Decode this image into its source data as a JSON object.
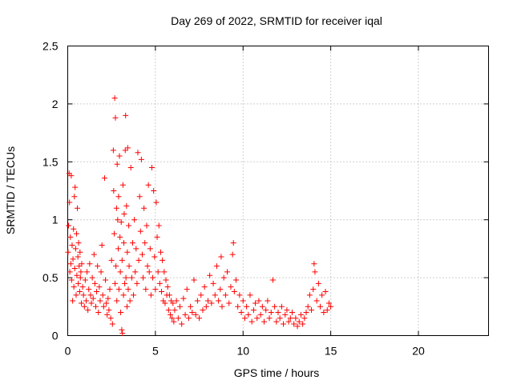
{
  "chart_data": {
    "type": "scatter",
    "title": "Day 269 of 2022, SRMTID for receiver iqal",
    "xlabel": "GPS time / hours",
    "ylabel": "SRMTID / TECUs",
    "xlim": [
      0,
      24
    ],
    "ylim": [
      0,
      2.5
    ],
    "xticks": [
      0,
      5,
      10,
      15,
      20
    ],
    "xtick_labels": [
      "0",
      "5",
      "10",
      "15",
      "20"
    ],
    "yticks": [
      0,
      0.5,
      1,
      1.5,
      2,
      2.5
    ],
    "ytick_labels": [
      "0",
      "0.5",
      "1",
      "1.5",
      "2",
      "2.5"
    ],
    "grid": true,
    "marker": "+",
    "color": "#ff0000",
    "series": [
      {
        "name": "SRMTID",
        "points": [
          [
            0.02,
            0.72
          ],
          [
            0.05,
            0.95
          ],
          [
            0.08,
            1.4
          ],
          [
            0.1,
            1.15
          ],
          [
            0.12,
            0.55
          ],
          [
            0.15,
            0.85
          ],
          [
            0.18,
            0.62
          ],
          [
            0.2,
            1.38
          ],
          [
            0.22,
            0.48
          ],
          [
            0.25,
            0.78
          ],
          [
            0.28,
            0.3
          ],
          [
            0.3,
            0.66
          ],
          [
            0.33,
            0.92
          ],
          [
            0.35,
            0.42
          ],
          [
            0.38,
            1.2
          ],
          [
            0.4,
            0.58
          ],
          [
            0.42,
            1.28
          ],
          [
            0.45,
            0.75
          ],
          [
            0.48,
            0.35
          ],
          [
            0.5,
            0.88
          ],
          [
            0.52,
            0.52
          ],
          [
            0.55,
            1.1
          ],
          [
            0.58,
            0.68
          ],
          [
            0.6,
            0.45
          ],
          [
            0.62,
            0.8
          ],
          [
            0.65,
            0.6
          ],
          [
            0.68,
            0.38
          ],
          [
            0.7,
            0.72
          ],
          [
            0.72,
            0.5
          ],
          [
            0.75,
            0.55
          ],
          [
            0.78,
            0.28
          ],
          [
            0.8,
            0.62
          ],
          [
            0.85,
            0.42
          ],
          [
            0.9,
            0.35
          ],
          [
            0.95,
            0.25
          ],
          [
            1.0,
            0.48
          ],
          [
            1.05,
            0.3
          ],
          [
            1.1,
            0.55
          ],
          [
            1.15,
            0.22
          ],
          [
            1.2,
            0.4
          ],
          [
            1.25,
            0.62
          ],
          [
            1.3,
            0.35
          ],
          [
            1.35,
            0.28
          ],
          [
            1.4,
            0.5
          ],
          [
            1.45,
            0.32
          ],
          [
            1.5,
            0.7
          ],
          [
            1.55,
            0.45
          ],
          [
            1.6,
            0.25
          ],
          [
            1.65,
            0.38
          ],
          [
            1.7,
            0.6
          ],
          [
            1.75,
            0.2
          ],
          [
            1.8,
            0.42
          ],
          [
            1.85,
            0.3
          ],
          [
            1.9,
            0.55
          ],
          [
            1.95,
            0.78
          ],
          [
            2.0,
            0.35
          ],
          [
            2.05,
            0.25
          ],
          [
            2.1,
            1.36
          ],
          [
            2.15,
            0.48
          ],
          [
            2.2,
            0.28
          ],
          [
            2.25,
            0.18
          ],
          [
            2.3,
            0.32
          ],
          [
            2.35,
            0.22
          ],
          [
            2.4,
            0.4
          ],
          [
            2.45,
            0.15
          ],
          [
            2.5,
            0.65
          ],
          [
            2.55,
            0.1
          ],
          [
            2.6,
            1.6
          ],
          [
            2.62,
            1.25
          ],
          [
            2.65,
            0.88
          ],
          [
            2.68,
            2.05
          ],
          [
            2.7,
            0.45
          ],
          [
            2.72,
            1.88
          ],
          [
            2.75,
            0.6
          ],
          [
            2.78,
            1.1
          ],
          [
            2.8,
            0.3
          ],
          [
            2.82,
            1.48
          ],
          [
            2.85,
            1.0
          ],
          [
            2.88,
            0.75
          ],
          [
            2.9,
            1.2
          ],
          [
            2.92,
            0.4
          ],
          [
            2.95,
            1.55
          ],
          [
            2.98,
            0.85
          ],
          [
            3.0,
            0.55
          ],
          [
            3.02,
            0.2
          ],
          [
            3.05,
            0.98
          ],
          [
            3.08,
            0.05
          ],
          [
            3.1,
            0.65
          ],
          [
            3.12,
            0.02
          ],
          [
            3.15,
            1.3
          ],
          [
            3.18,
            0.35
          ],
          [
            3.2,
            0.8
          ],
          [
            3.22,
            1.05
          ],
          [
            3.25,
            0.45
          ],
          [
            3.28,
            1.6
          ],
          [
            3.3,
            1.9
          ],
          [
            3.32,
            0.5
          ],
          [
            3.35,
            1.12
          ],
          [
            3.38,
            0.25
          ],
          [
            3.4,
            0.72
          ],
          [
            3.42,
            1.62
          ],
          [
            3.45,
            0.4
          ],
          [
            3.48,
            0.95
          ],
          [
            3.5,
            0.6
          ],
          [
            3.55,
            0.3
          ],
          [
            3.6,
            1.45
          ],
          [
            3.65,
            0.5
          ],
          [
            3.7,
            0.8
          ],
          [
            3.75,
            0.35
          ],
          [
            3.8,
            1.0
          ],
          [
            3.85,
            0.55
          ],
          [
            3.9,
            0.75
          ],
          [
            3.95,
            0.45
          ],
          [
            4.0,
            1.58
          ],
          [
            4.05,
            0.65
          ],
          [
            4.1,
            1.2
          ],
          [
            4.15,
            0.9
          ],
          [
            4.2,
            1.52
          ],
          [
            4.25,
            0.7
          ],
          [
            4.3,
            0.5
          ],
          [
            4.35,
            1.1
          ],
          [
            4.4,
            0.8
          ],
          [
            4.45,
            0.4
          ],
          [
            4.5,
            0.95
          ],
          [
            4.55,
            0.6
          ],
          [
            4.6,
            1.3
          ],
          [
            4.65,
            0.55
          ],
          [
            4.7,
            0.75
          ],
          [
            4.75,
            0.35
          ],
          [
            4.8,
            1.45
          ],
          [
            4.85,
            0.5
          ],
          [
            4.9,
            1.25
          ],
          [
            4.95,
            0.68
          ],
          [
            5.0,
            0.4
          ],
          [
            5.05,
            1.15
          ],
          [
            5.1,
            0.85
          ],
          [
            5.15,
            0.55
          ],
          [
            5.2,
            0.95
          ],
          [
            5.25,
            0.45
          ],
          [
            5.3,
            0.72
          ],
          [
            5.35,
            0.38
          ],
          [
            5.4,
            0.65
          ],
          [
            5.45,
            0.3
          ],
          [
            5.5,
            0.55
          ],
          [
            5.55,
            0.28
          ],
          [
            5.6,
            0.48
          ],
          [
            5.65,
            0.35
          ],
          [
            5.7,
            0.42
          ],
          [
            5.75,
            0.22
          ],
          [
            5.8,
            0.35
          ],
          [
            5.85,
            0.18
          ],
          [
            5.9,
            0.3
          ],
          [
            5.95,
            0.15
          ],
          [
            6.0,
            0.28
          ],
          [
            6.05,
            0.12
          ],
          [
            6.1,
            0.22
          ],
          [
            6.2,
            0.3
          ],
          [
            6.3,
            0.15
          ],
          [
            6.4,
            0.25
          ],
          [
            6.5,
            0.1
          ],
          [
            6.6,
            0.32
          ],
          [
            6.7,
            0.18
          ],
          [
            6.8,
            0.4
          ],
          [
            6.9,
            0.15
          ],
          [
            7.0,
            0.25
          ],
          [
            7.1,
            0.2
          ],
          [
            7.2,
            0.48
          ],
          [
            7.3,
            0.18
          ],
          [
            7.4,
            0.3
          ],
          [
            7.5,
            0.15
          ],
          [
            7.6,
            0.35
          ],
          [
            7.7,
            0.22
          ],
          [
            7.8,
            0.42
          ],
          [
            7.9,
            0.25
          ],
          [
            8.0,
            0.3
          ],
          [
            8.1,
            0.52
          ],
          [
            8.2,
            0.28
          ],
          [
            8.3,
            0.45
          ],
          [
            8.4,
            0.35
          ],
          [
            8.5,
            0.6
          ],
          [
            8.6,
            0.3
          ],
          [
            8.7,
            0.4
          ],
          [
            8.75,
            0.68
          ],
          [
            8.8,
            0.25
          ],
          [
            8.9,
            0.5
          ],
          [
            9.0,
            0.35
          ],
          [
            9.1,
            0.55
          ],
          [
            9.2,
            0.28
          ],
          [
            9.3,
            0.42
          ],
          [
            9.4,
            0.7
          ],
          [
            9.45,
            0.8
          ],
          [
            9.5,
            0.38
          ],
          [
            9.6,
            0.48
          ],
          [
            9.7,
            0.25
          ],
          [
            9.8,
            0.35
          ],
          [
            9.9,
            0.2
          ],
          [
            10.0,
            0.3
          ],
          [
            10.1,
            0.15
          ],
          [
            10.2,
            0.25
          ],
          [
            10.3,
            0.18
          ],
          [
            10.4,
            0.35
          ],
          [
            10.5,
            0.12
          ],
          [
            10.6,
            0.22
          ],
          [
            10.7,
            0.28
          ],
          [
            10.8,
            0.15
          ],
          [
            10.9,
            0.3
          ],
          [
            11.0,
            0.18
          ],
          [
            11.1,
            0.25
          ],
          [
            11.2,
            0.12
          ],
          [
            11.3,
            0.22
          ],
          [
            11.4,
            0.3
          ],
          [
            11.5,
            0.15
          ],
          [
            11.6,
            0.2
          ],
          [
            11.7,
            0.48
          ],
          [
            11.8,
            0.25
          ],
          [
            11.9,
            0.12
          ],
          [
            12.0,
            0.2
          ],
          [
            12.1,
            0.15
          ],
          [
            12.2,
            0.25
          ],
          [
            12.3,
            0.1
          ],
          [
            12.4,
            0.18
          ],
          [
            12.5,
            0.22
          ],
          [
            12.6,
            0.12
          ],
          [
            12.7,
            0.15
          ],
          [
            12.8,
            0.2
          ],
          [
            12.9,
            0.1
          ],
          [
            13.0,
            0.15
          ],
          [
            13.1,
            0.08
          ],
          [
            13.2,
            0.12
          ],
          [
            13.3,
            0.18
          ],
          [
            13.4,
            0.1
          ],
          [
            13.5,
            0.15
          ],
          [
            13.6,
            0.2
          ],
          [
            13.7,
            0.25
          ],
          [
            13.8,
            0.35
          ],
          [
            13.9,
            0.22
          ],
          [
            14.0,
            0.4
          ],
          [
            14.05,
            0.62
          ],
          [
            14.1,
            0.55
          ],
          [
            14.2,
            0.3
          ],
          [
            14.3,
            0.45
          ],
          [
            14.4,
            0.25
          ],
          [
            14.5,
            0.35
          ],
          [
            14.6,
            0.2
          ],
          [
            14.7,
            0.38
          ],
          [
            14.8,
            0.22
          ],
          [
            14.9,
            0.28
          ],
          [
            15.0,
            0.25
          ]
        ]
      }
    ]
  }
}
